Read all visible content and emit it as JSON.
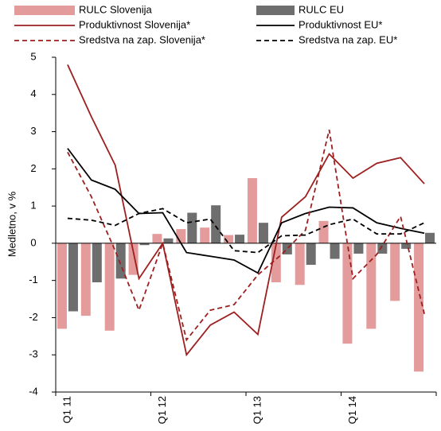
{
  "chart_data": {
    "type": "bar",
    "y_label": "Medletno, v %",
    "categories": [
      "Q1 11",
      null,
      null,
      null,
      "Q1 12",
      null,
      null,
      null,
      "Q1 13",
      null,
      null,
      null,
      "Q1 14",
      null,
      null,
      null
    ],
    "ylim": [
      -4,
      5
    ],
    "yticks": [
      -4,
      -3,
      -2,
      -1,
      0,
      1,
      2,
      3,
      4,
      5
    ],
    "series": [
      {
        "name": "RULC Slovenija",
        "type": "bar",
        "color": "#e39b9b",
        "values": [
          -2.3,
          -1.95,
          -2.35,
          -0.85,
          0.25,
          0.38,
          0.42,
          0.22,
          1.75,
          -1.05,
          -1.12,
          0.6,
          -2.7,
          -2.3,
          -1.55,
          -3.45
        ]
      },
      {
        "name": "RULC EU",
        "type": "bar",
        "color": "#6e6e6e",
        "values": [
          -1.83,
          -1.05,
          -0.95,
          -0.05,
          0.13,
          0.82,
          1.02,
          0.23,
          0.55,
          -0.3,
          -0.58,
          -0.42,
          -0.28,
          -0.28,
          -0.15,
          0.28
        ]
      },
      {
        "name": "Produktivnost Slovenija*",
        "type": "line",
        "color": "#9e1f1f",
        "dash": false,
        "values": [
          4.8,
          3.4,
          2.1,
          -0.95,
          0.0,
          -3.0,
          -2.2,
          -1.85,
          -2.45,
          0.7,
          1.25,
          2.4,
          1.75,
          2.15,
          2.3,
          1.6
        ]
      },
      {
        "name": "Produktivnost EU*",
        "type": "line",
        "color": "#000000",
        "dash": false,
        "values": [
          2.55,
          1.7,
          1.45,
          0.8,
          0.82,
          -0.25,
          -0.35,
          -0.45,
          -0.8,
          0.55,
          0.8,
          0.97,
          0.95,
          0.55,
          0.4,
          0.27
        ]
      },
      {
        "name": "Sredstva na zap. Slovenija*",
        "type": "line",
        "color": "#9e1f1f",
        "dash": true,
        "values": [
          2.45,
          1.25,
          -0.2,
          -1.8,
          0.0,
          -2.6,
          -1.8,
          -1.65,
          -0.85,
          -0.3,
          0.35,
          3.05,
          -0.95,
          -0.3,
          0.72,
          -1.9
        ]
      },
      {
        "name": "Sredstva na zap. EU*",
        "type": "line",
        "color": "#000000",
        "dash": true,
        "values": [
          0.67,
          0.62,
          0.48,
          0.8,
          0.93,
          0.55,
          0.65,
          -0.2,
          -0.25,
          0.2,
          0.22,
          0.5,
          0.65,
          0.25,
          0.25,
          0.55
        ]
      }
    ]
  }
}
